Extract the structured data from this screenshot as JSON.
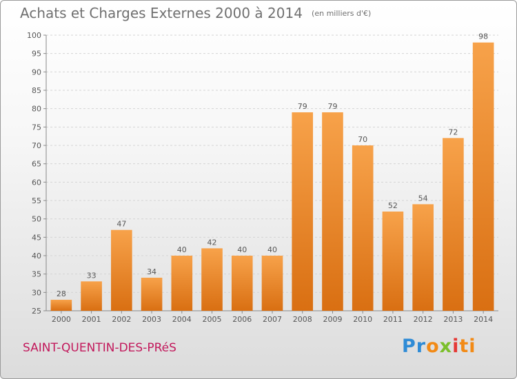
{
  "header": {
    "title": "Achats et Charges Externes 2000 à 2014",
    "unit": "(en milliers d'€)"
  },
  "commune": "SAINT-QUENTIN-DES-PRéS",
  "logo": {
    "parts": [
      "Pr",
      "o",
      "x",
      "i",
      "ti"
    ],
    "colors": [
      "#2e8bd6",
      "#f28a16",
      "#7bbf2a",
      "#e53935",
      "#f28a16"
    ]
  },
  "chart_data": {
    "type": "bar",
    "title": "Achats et Charges Externes 2000 à 2014",
    "subtitle": "(en milliers d'€)",
    "categories": [
      "2000",
      "2001",
      "2002",
      "2003",
      "2004",
      "2005",
      "2006",
      "2007",
      "2008",
      "2009",
      "2010",
      "2011",
      "2012",
      "2013",
      "2014"
    ],
    "values": [
      28,
      33,
      47,
      34,
      40,
      42,
      40,
      40,
      79,
      79,
      70,
      52,
      54,
      72,
      98
    ],
    "data_labels": [
      "28",
      "33",
      "47",
      "34",
      "40",
      "42",
      "40",
      "40",
      "79",
      "79",
      "70",
      "52",
      "54",
      "72",
      "98"
    ],
    "yticks": [
      25,
      30,
      35,
      40,
      45,
      50,
      55,
      60,
      65,
      70,
      75,
      80,
      85,
      90,
      95,
      100
    ],
    "ylim": [
      25,
      100
    ],
    "xlabel": "",
    "ylabel": "",
    "grid": true,
    "colors": {
      "bar_light": "#f7a24a",
      "bar_dark": "#d96f12",
      "grid": "#d4d4d4",
      "axis_text": "#555555"
    }
  }
}
